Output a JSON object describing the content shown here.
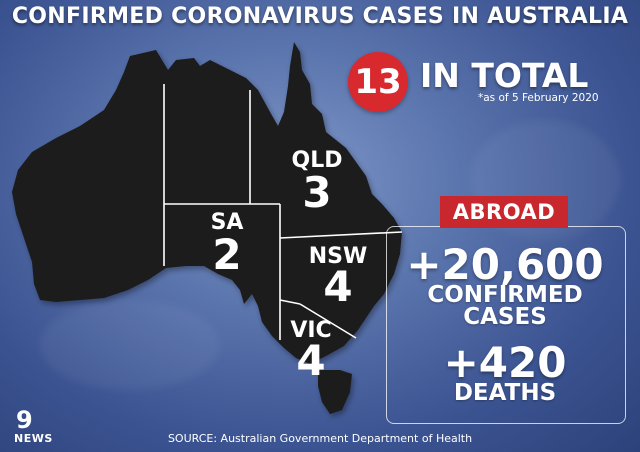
{
  "title": "CONFIRMED CORONAVIRUS CASES IN AUSTRALIA",
  "total": {
    "count": "13",
    "label": "IN TOTAL",
    "as_of": "*as of 5 February 2020"
  },
  "states": [
    {
      "name": "QLD",
      "cases": "3"
    },
    {
      "name": "SA",
      "cases": "2"
    },
    {
      "name": "NSW",
      "cases": "4"
    },
    {
      "name": "VIC",
      "cases": "4"
    }
  ],
  "abroad": {
    "badge": "ABROAD",
    "confirmed_count": "+20,600",
    "confirmed_line1": "CONFIRMED",
    "confirmed_line2": "CASES",
    "deaths_count": "+420",
    "deaths_label": "DEATHS"
  },
  "source": "SOURCE: Australian Government Department of Health",
  "logo": {
    "nine": "9",
    "news": "NEWS"
  },
  "colors": {
    "background": "#4a64a0",
    "landmass": "#1b1b1d",
    "accent_red": "#d8292f",
    "text": "#ffffff"
  }
}
